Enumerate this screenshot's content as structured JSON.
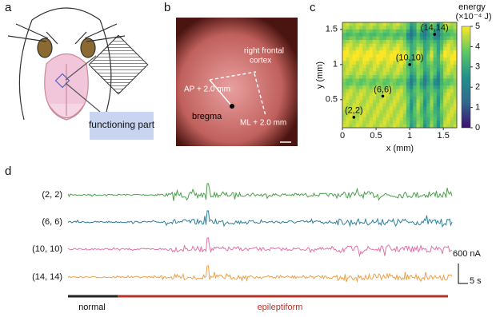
{
  "panels": {
    "a": {
      "label": "a",
      "callout": "functioning part"
    },
    "b": {
      "label": "b",
      "annotations": [
        "right frontal",
        "cortex",
        "AP + 2.0 mm",
        "bregma",
        "ML + 2.0 mm"
      ]
    },
    "c": {
      "label": "c",
      "colorbar_title": "energy",
      "colorbar_unit": "(×10⁻⁴ J)",
      "colorbar_lim": [
        0,
        5
      ],
      "colorbar_ticks": [
        0,
        1,
        2,
        3,
        4,
        5
      ],
      "xlabel": "x (mm)",
      "ylabel": "y (mm)",
      "xlim": [
        0,
        1.7
      ],
      "xticks": [
        0,
        0.5,
        1,
        1.5
      ],
      "ylim": [
        0.1,
        1.6
      ],
      "yticks": [
        0.5,
        1,
        1.5
      ],
      "points": [
        {
          "label": "(2,2)",
          "x": 0.17,
          "y": 0.25
        },
        {
          "label": "(6,6)",
          "x": 0.6,
          "y": 0.55
        },
        {
          "label": "(10,10)",
          "x": 1.0,
          "y": 1.0
        },
        {
          "label": "(14,14)",
          "x": 1.37,
          "y": 1.43
        }
      ]
    },
    "d": {
      "label": "d",
      "traces": [
        "(2, 2)",
        "(6, 6)",
        "(10, 10)",
        "(14, 14)"
      ],
      "scale_current": "600 nA",
      "scale_time": "5 s",
      "phases": [
        "normal",
        "epileptiform"
      ]
    }
  }
}
